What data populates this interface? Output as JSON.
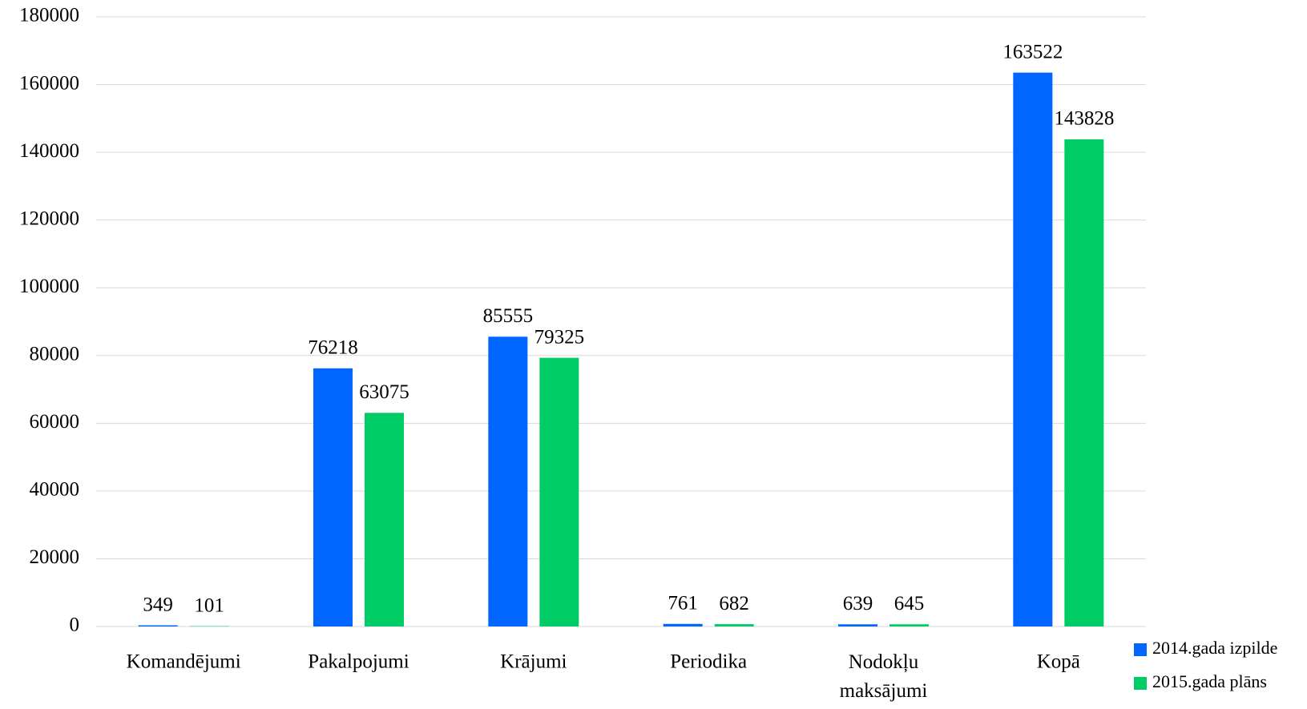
{
  "chart_data": {
    "type": "bar",
    "categories": [
      "Komandējumi",
      "Pakalpojumi",
      "Krājumi",
      "Periodika",
      "Nodokļu maksājumi",
      "Kopā"
    ],
    "series": [
      {
        "name": "2014.gada izpilde",
        "color": "#0066ff",
        "values": [
          349,
          76218,
          85555,
          761,
          639,
          163522
        ]
      },
      {
        "name": "2015.gada plāns",
        "color": "#00cc66",
        "values": [
          101,
          63075,
          79325,
          682,
          645,
          143828
        ]
      }
    ],
    "ylim": [
      0,
      180000
    ],
    "yticks": [
      0,
      20000,
      40000,
      60000,
      80000,
      100000,
      120000,
      140000,
      160000,
      180000
    ],
    "grid": true,
    "legend": "bottom-right"
  }
}
